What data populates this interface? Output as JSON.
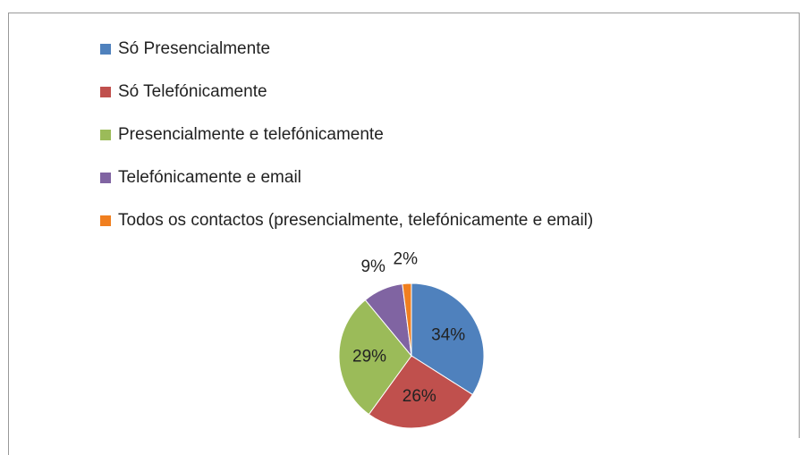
{
  "chart_data": {
    "type": "pie",
    "categories": [
      "Só Presencialmente",
      "Só Telefónicamente",
      "Presencialmente e telefónicamente",
      "Telefónicamente e email",
      "Todos os contactos (presencialmente, telefónicamente e email)"
    ],
    "values": [
      34,
      26,
      29,
      9,
      2
    ],
    "value_labels": [
      "34%",
      "26%",
      "29%",
      "9%",
      "2%"
    ],
    "colors": [
      "#4f81bd",
      "#c0504d",
      "#9bbb59",
      "#8064a2",
      "#f07f1f"
    ],
    "legend": "top"
  }
}
